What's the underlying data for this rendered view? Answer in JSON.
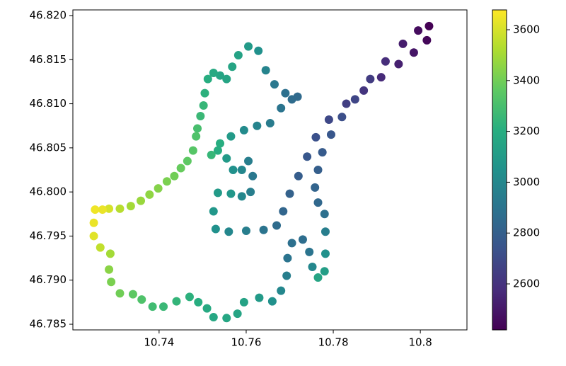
{
  "chart_data": {
    "type": "scatter",
    "colormap": "viridis",
    "x": [
      10.7253,
      10.725,
      10.725,
      10.7265,
      10.7288,
      10.7285,
      10.729,
      10.731,
      10.734,
      10.736,
      10.7385,
      10.741,
      10.744,
      10.747,
      10.749,
      10.751,
      10.7525,
      10.7555,
      10.758,
      10.7595,
      10.763,
      10.766,
      10.768,
      10.7693,
      10.7695,
      10.7705,
      10.773,
      10.7745,
      10.7752,
      10.7765,
      10.778,
      10.7782,
      10.7782,
      10.778,
      10.7765,
      10.7758,
      10.7765,
      10.7775,
      10.7795,
      10.782,
      10.785,
      10.7885,
      10.792,
      10.796,
      10.7995,
      10.802,
      10.8015,
      10.7985,
      10.795,
      10.791,
      10.787,
      10.783,
      10.779,
      10.776,
      10.774,
      10.772,
      10.77,
      10.7685,
      10.767,
      10.764,
      10.76,
      10.756,
      10.753,
      10.7525,
      10.7535,
      10.7565,
      10.759,
      10.761,
      10.7615,
      10.7605,
      10.759,
      10.757,
      10.7555,
      10.7535,
      10.752,
      10.754,
      10.7565,
      10.7595,
      10.7625,
      10.7655,
      10.768,
      10.7705,
      10.7718,
      10.769,
      10.7665,
      10.7645,
      10.7628,
      10.7605,
      10.7582,
      10.7568,
      10.7555,
      10.754,
      10.7525,
      10.7512,
      10.7505,
      10.7502,
      10.7495,
      10.7488,
      10.7485,
      10.7478,
      10.7465,
      10.745,
      10.7435,
      10.7418,
      10.7398,
      10.7378,
      10.7358,
      10.7335,
      10.731,
      10.7285,
      10.727
    ],
    "values": [
      46.798,
      46.7965,
      46.795,
      46.7937,
      46.793,
      46.7912,
      46.7898,
      46.7885,
      46.7884,
      46.7878,
      46.787,
      46.787,
      46.7876,
      46.7881,
      46.7875,
      46.7868,
      46.7858,
      46.7857,
      46.7862,
      46.7875,
      46.788,
      46.7876,
      46.7888,
      46.7905,
      46.7925,
      46.7942,
      46.7946,
      46.7932,
      46.7915,
      46.7903,
      46.791,
      46.793,
      46.7955,
      46.7975,
      46.7988,
      46.8005,
      46.8025,
      46.8045,
      46.8065,
      46.8085,
      46.8105,
      46.8128,
      46.8148,
      46.8168,
      46.8183,
      46.8188,
      46.8172,
      46.8158,
      46.8145,
      46.813,
      46.8115,
      46.81,
      46.8082,
      46.8062,
      46.804,
      46.8018,
      46.7998,
      46.7978,
      46.7962,
      46.7957,
      46.7956,
      46.7955,
      46.7958,
      46.7978,
      46.7999,
      46.7998,
      46.7995,
      46.8,
      46.8018,
      46.8035,
      46.8025,
      46.8025,
      46.8038,
      46.8047,
      46.8042,
      46.8055,
      46.8063,
      46.807,
      46.8075,
      46.8078,
      46.8095,
      46.8105,
      46.8108,
      46.8112,
      46.8122,
      46.8138,
      46.816,
      46.8165,
      46.8155,
      46.8142,
      46.8128,
      46.8132,
      46.8135,
      46.8128,
      46.8112,
      46.8098,
      46.8086,
      46.8072,
      46.8063,
      46.8047,
      46.8035,
      46.8027,
      46.8018,
      46.8012,
      46.8004,
      46.7997,
      46.799,
      46.7984,
      46.7981,
      46.7981,
      46.798
    ],
    "color_values": [
      3650,
      3640,
      3620,
      3560,
      3500,
      3450,
      3420,
      3400,
      3360,
      3320,
      3280,
      3260,
      3240,
      3220,
      3200,
      3180,
      3170,
      3160,
      3150,
      3140,
      3100,
      3050,
      3000,
      2950,
      2900,
      2880,
      2870,
      2900,
      3000,
      3150,
      3120,
      3050,
      2950,
      2880,
      2840,
      2820,
      2800,
      2780,
      2760,
      2720,
      2680,
      2640,
      2580,
      2520,
      2460,
      2420,
      2440,
      2490,
      2530,
      2570,
      2610,
      2650,
      2690,
      2730,
      2760,
      2790,
      2810,
      2830,
      2860,
      2900,
      2950,
      3000,
      3050,
      3080,
      3100,
      3080,
      3000,
      2950,
      2920,
      2950,
      3000,
      3050,
      3100,
      3200,
      3250,
      3200,
      3100,
      3020,
      2980,
      2940,
      2900,
      2860,
      2850,
      2880,
      2920,
      2980,
      3050,
      3100,
      3140,
      3150,
      3150,
      3150,
      3180,
      3200,
      3220,
      3250,
      3260,
      3300,
      3320,
      3340,
      3360,
      3380,
      3400,
      3420,
      3440,
      3460,
      3480,
      3500,
      3540,
      3600,
      3640
    ],
    "xlim": [
      10.7202,
      10.8107
    ],
    "xticks": [
      10.74,
      10.76,
      10.78,
      10.8
    ],
    "ylim": [
      46.78436,
      46.82064
    ],
    "yticks": [
      46.785,
      {
        "value": 46.79,
        "label": "46.790"
      },
      46.795,
      {
        "value": 46.8,
        "label": "46.800"
      },
      46.805,
      {
        "value": 46.81,
        "label": "46.810"
      },
      46.815,
      {
        "value": 46.82,
        "label": "46.820"
      }
    ],
    "clim": [
      2419,
      3678
    ],
    "cticks": [
      2600,
      2800,
      3000,
      3200,
      3400,
      3600
    ]
  }
}
